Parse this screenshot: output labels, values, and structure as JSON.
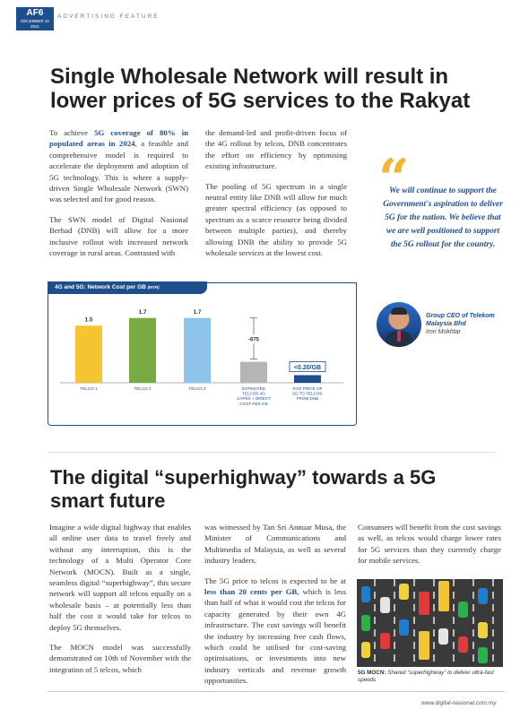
{
  "header": {
    "page_number": "AF6",
    "date_line1": "DECEMBER 10",
    "date_line2": "2021",
    "feature_label": "ADVERTISING FEATURE"
  },
  "article1": {
    "headline": "Single Wholesale Network will result in lower prices of 5G services to the Rakyat",
    "col1_p1_a": "To achieve ",
    "col1_p1_highlight": "5G coverage of 80% in populated areas in 2024",
    "col1_p1_b": ", a feasible and comprehensive model is required to accelerate the deployment and adoption of 5G technology. This is where a supply-driven Single Wholesale Network (SWN) was selected and for good reason.",
    "col1_p2": "The SWN model of Digital Nasional Berhad (DNB) will allow for a more inclusive rollout with increased network coverage in rural areas. Contrasted with",
    "col2_p1": "the demand-led and profit-driven focus of the 4G rollout by telcos, DNB concentrates the effort on efficiency by optimising existing infrastructure.",
    "col2_p2": "The pooling of 5G spectrum in a single neutral entity like DNB will allow for much greater spectral efficiency (as opposed to spectrum as a scarce resource being divided between multiple parties), and thereby allowing DNB the ability to provide 5G wholesale services at the lowest cost."
  },
  "chart_data": {
    "type": "bar",
    "title": "4G and 5G: Network Cost per GB",
    "title_unit": "(MYR)",
    "categories": [
      "TELCO 1",
      "TELCO 2",
      "TELCO 3",
      "ESTIMATED TELCOS 4G CAPEX + DIRECT COST PER GB",
      "RAO PRICE OF 5G TO TELCOS FROM DNB"
    ],
    "values": [
      1.5,
      1.7,
      1.7,
      0.55,
      0.2
    ],
    "data_labels": [
      "1.5",
      "1.7",
      "1.7",
      "",
      "<0.20/GB"
    ],
    "colors": [
      "#f4c531",
      "#7aab42",
      "#8ec3ea",
      "#b5b5b5",
      "#1f4e8c"
    ],
    "annotation": "-675",
    "ylim": [
      0,
      2
    ]
  },
  "quote": {
    "mark": "“",
    "text": "We will continue to support the Government's aspiration to deliver 5G for the nation. We believe that we are well positioned to support the 5G rollout for the country.",
    "speaker_title": "Group CEO of Telekom Malaysia Bhd",
    "speaker_name": "Imri Mokhtar"
  },
  "article2": {
    "headline": "The digital “superhighway” towards a 5G smart future",
    "col1_p1": "Imagine a wide digital highway that enables all online user data to travel freely and without any interruption, this is the technology of a Multi Operator Core Network (MOCN). Built as a single, seamless digital “superhighway”, this secure network will support all telcos equally on a wholesale basis – at potentially less than half the cost it would take for telcos to deploy 5G themselves.",
    "col1_p2": "The MOCN model was successfully demonstrated on 10th of November with the integration of 5 telcos, which",
    "col2_p1": "was witnessed by Tan Sri Annuar Musa, the Minister of Communications and Multimedia of Malaysia, as well as several industry leaders.",
    "col2_p2_a": "The 5G price to telcos is expected to be at ",
    "col2_p2_highlight": "less than 20 cents per GB",
    "col2_p2_b": ", which is less than half of what it would cost the telcos for capacity generated by their own 4G infrastructure. The cost savings will benefit the industry by increasing free cash flows, which could be utilised for cost-saving optimisations, or investments into new industry verticals and revenue growth opportunities.",
    "col3_p1": "Consumers will benefit from the cost savings as well, as telcos would charge lower rates for 5G services than they currently charge for mobile services.",
    "caption_bold": "5G MOCN:",
    "caption_text": " Shared “superhighway” to deliver ultra-fast speeds"
  },
  "footer": {
    "url": "www.digital-nasional.com.my"
  }
}
